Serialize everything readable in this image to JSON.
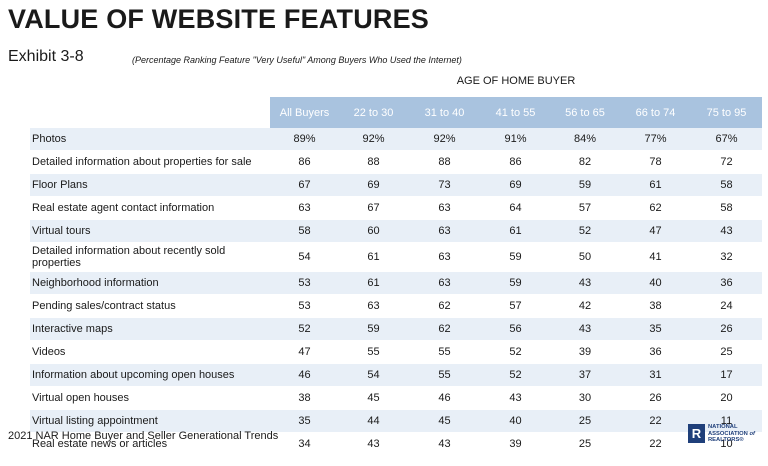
{
  "title": "VALUE OF WEBSITE FEATURES",
  "exhibit": "Exhibit 3-8",
  "subtitle": "(Percentage Ranking Feature \"Very Useful\" Among Buyers Who Used the Internet)",
  "age_header": "AGE OF HOME BUYER",
  "columns": [
    "All Buyers",
    "22 to 30",
    "31 to 40",
    "41 to 55",
    "56 to 65",
    "66 to 74",
    "75 to 95"
  ],
  "rows": [
    {
      "feature": "Photos",
      "values": [
        "89%",
        "92%",
        "92%",
        "91%",
        "84%",
        "77%",
        "67%"
      ]
    },
    {
      "feature": "Detailed information about properties for sale",
      "values": [
        "86",
        "88",
        "88",
        "86",
        "82",
        "78",
        "72"
      ]
    },
    {
      "feature": "Floor Plans",
      "values": [
        "67",
        "69",
        "73",
        "69",
        "59",
        "61",
        "58"
      ]
    },
    {
      "feature": "Real estate agent contact information",
      "values": [
        "63",
        "67",
        "63",
        "64",
        "57",
        "62",
        "58"
      ]
    },
    {
      "feature": "Virtual tours",
      "values": [
        "58",
        "60",
        "63",
        "61",
        "52",
        "47",
        "43"
      ]
    },
    {
      "feature": "Detailed information about recently sold properties",
      "values": [
        "54",
        "61",
        "63",
        "59",
        "50",
        "41",
        "32"
      ]
    },
    {
      "feature": "Neighborhood information",
      "values": [
        "53",
        "61",
        "63",
        "59",
        "43",
        "40",
        "36"
      ]
    },
    {
      "feature": "Pending sales/contract status",
      "values": [
        "53",
        "63",
        "62",
        "57",
        "42",
        "38",
        "24"
      ]
    },
    {
      "feature": "Interactive maps",
      "values": [
        "52",
        "59",
        "62",
        "56",
        "43",
        "35",
        "26"
      ]
    },
    {
      "feature": "Videos",
      "values": [
        "47",
        "55",
        "55",
        "52",
        "39",
        "36",
        "25"
      ]
    },
    {
      "feature": "Information about upcoming open houses",
      "values": [
        "46",
        "54",
        "55",
        "52",
        "37",
        "31",
        "17"
      ]
    },
    {
      "feature": "Virtual open houses",
      "values": [
        "38",
        "45",
        "46",
        "43",
        "30",
        "26",
        "20"
      ]
    },
    {
      "feature": "Virtual listing appointment",
      "values": [
        "35",
        "44",
        "45",
        "40",
        "25",
        "22",
        "11"
      ]
    },
    {
      "feature": "Real estate news or articles",
      "values": [
        "34",
        "43",
        "43",
        "39",
        "25",
        "22",
        "10"
      ]
    }
  ],
  "footer": "2021 NAR Home Buyer and Seller Generational Trends",
  "logo": {
    "mark": "R",
    "text": "NATIONAL ASSOCIATION of REALTORS®",
    "color": "#1f3f7a"
  },
  "colors": {
    "header_bg": "#a9c3df",
    "row_stripe": "#e8eff7"
  }
}
